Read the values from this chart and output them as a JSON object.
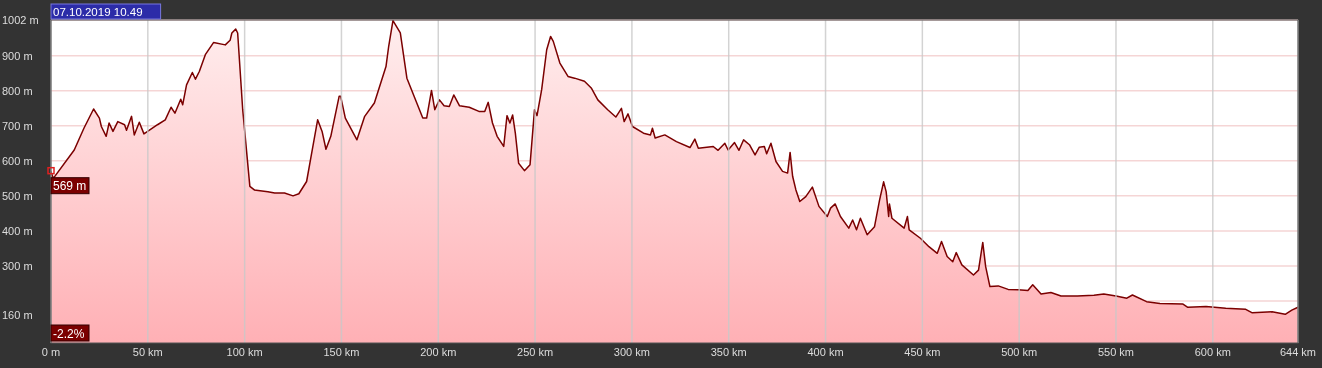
{
  "chart_data": {
    "type": "area",
    "xlim": [
      0,
      644
    ],
    "ylim": [
      80,
      1002
    ],
    "xticks": [
      {
        "value": 0,
        "label": "0 m"
      },
      {
        "value": 50,
        "label": "50 km"
      },
      {
        "value": 100,
        "label": "100 km"
      },
      {
        "value": 150,
        "label": "150 km"
      },
      {
        "value": 200,
        "label": "200 km"
      },
      {
        "value": 250,
        "label": "250 km"
      },
      {
        "value": 300,
        "label": "300 km"
      },
      {
        "value": 350,
        "label": "350 km"
      },
      {
        "value": 400,
        "label": "400 km"
      },
      {
        "value": 450,
        "label": "450 km"
      },
      {
        "value": 500,
        "label": "500 km"
      },
      {
        "value": 550,
        "label": "550 km"
      },
      {
        "value": 600,
        "label": "600 km"
      },
      {
        "value": 644,
        "label": "644 km"
      }
    ],
    "yticks": [
      {
        "value": 160,
        "label": "160 m"
      },
      {
        "value": 200,
        "label": null
      },
      {
        "value": 300,
        "label": "300 m"
      },
      {
        "value": 400,
        "label": "400 m"
      },
      {
        "value": 500,
        "label": "500 m"
      },
      {
        "value": 600,
        "label": "600 m"
      },
      {
        "value": 700,
        "label": "700 m"
      },
      {
        "value": 800,
        "label": "800 m"
      },
      {
        "value": 900,
        "label": "900 m"
      },
      {
        "value": 1002,
        "label": "1002 m"
      }
    ],
    "grid": true,
    "annotations": [
      "07.10.2019 10.49",
      {
        "text": "569 m",
        "x": 0,
        "y": 569
      },
      "-2.2%"
    ],
    "series": [
      {
        "color": "#7b0000",
        "x": [
          0,
          1.2,
          12,
          17,
          22,
          25,
          26,
          28.5,
          30,
          32,
          34.5,
          38,
          39,
          41.6,
          43,
          45.6,
          48,
          55,
          59,
          62,
          64,
          67,
          68,
          70,
          73,
          74.6,
          76.6,
          79.7,
          84,
          90,
          92.5,
          93.4,
          95.4,
          96.4,
          99,
          102.7,
          105,
          112,
          115.5,
          120.6,
          125,
          128,
          132,
          134,
          137.7,
          140,
          142,
          144.5,
          148.8,
          149.6,
          152,
          158,
          162,
          167,
          173,
          174.4,
          176.6,
          180.4,
          183.8,
          192,
          194,
          196.5,
          198.2,
          200.6,
          203,
          205.7,
          208,
          211,
          216,
          221,
          224,
          225.8,
          228,
          230.4,
          233.8,
          235.5,
          237,
          238.4,
          239.8,
          241.5,
          244.5,
          247.4,
          249.7,
          251,
          253.4,
          256,
          258,
          259.4,
          262.8,
          267,
          270.4,
          275.5,
          279,
          282.4,
          287.5,
          291.7,
          294.6,
          296,
          298,
          300.3,
          306,
          309.6,
          310.6,
          312,
          317,
          323,
          330,
          332.5,
          334.3,
          342,
          344.5,
          348,
          349.7,
          353,
          355.3,
          357.7,
          360.7,
          363.6,
          365.8,
          368.4,
          369.6,
          371.8,
          374.4,
          377.8,
          380.4,
          381.7,
          383,
          384.7,
          386.7,
          389.8,
          393.2,
          396.6,
          400.9,
          402.6,
          405,
          407.7,
          412,
          414,
          416,
          418,
          421.5,
          425.3,
          427.9,
          430,
          431.3,
          432.6,
          433,
          434.3,
          440.6,
          442.3,
          443.2,
          449,
          453.4,
          457.7,
          459.9,
          462.8,
          465.7,
          467.5,
          470.4,
          476.4,
          479,
          481.2,
          482.7,
          484.9,
          489.2,
          494.3,
          499.4,
          504.5,
          507,
          511.3,
          516.4,
          521.6,
          530,
          538.6,
          543.7,
          550,
          555.6,
          558.5,
          565.8,
          572.7,
          584.6,
          587.1,
          596.5,
          606.7,
          617,
          620.4,
          630.6,
          637.4,
          640.8,
          644
        ],
        "values": [
          569,
          550,
          631,
          693,
          748,
          722,
          698,
          670,
          708,
          684,
          712,
          703,
          687,
          727,
          674,
          710,
          677,
          703,
          717,
          753,
          736,
          776,
          760,
          817,
          852,
          833,
          855,
          903,
          938,
          931,
          944,
          965,
          976,
          965,
          746,
          527,
          517,
          512,
          508,
          508,
          500,
          506,
          541,
          603,
          717,
          684,
          633,
          670,
          784,
          784,
          722,
          660,
          727,
          765,
          869,
          927,
          1000,
          965,
          836,
          722,
          722,
          801,
          746,
          774,
          757,
          755,
          788,
          757,
          753,
          741,
          741,
          767,
          708,
          670,
          641,
          729,
          708,
          731,
          679,
          593,
          572,
          589,
          746,
          729,
          803,
          917,
          955,
          941,
          879,
          841,
          836,
          827,
          808,
          774,
          746,
          725,
          750,
          712,
          734,
          698,
          679,
          674,
          693,
          665,
          674,
          655,
          638,
          662,
          636,
          641,
          630,
          650,
          631,
          652,
          630,
          660,
          646,
          617,
          639,
          641,
          620,
          650,
          598,
          570,
          565,
          624,
          556,
          517,
          484,
          498,
          525,
          470,
          441,
          465,
          477,
          441,
          408,
          431,
          403,
          436,
          389,
          412,
          488,
          540,
          512,
          441,
          477,
          436,
          408,
          441,
          403,
          379,
          355,
          336,
          370,
          327,
          312,
          338,
          303,
          274,
          288,
          367,
          298,
          241,
          243,
          233,
          232,
          230,
          246,
          220,
          224,
          214,
          214,
          216,
          220,
          214,
          208,
          217,
          198,
          193,
          191,
          182,
          184,
          179,
          176,
          166,
          169,
          162,
          174,
          182
        ]
      }
    ]
  }
}
